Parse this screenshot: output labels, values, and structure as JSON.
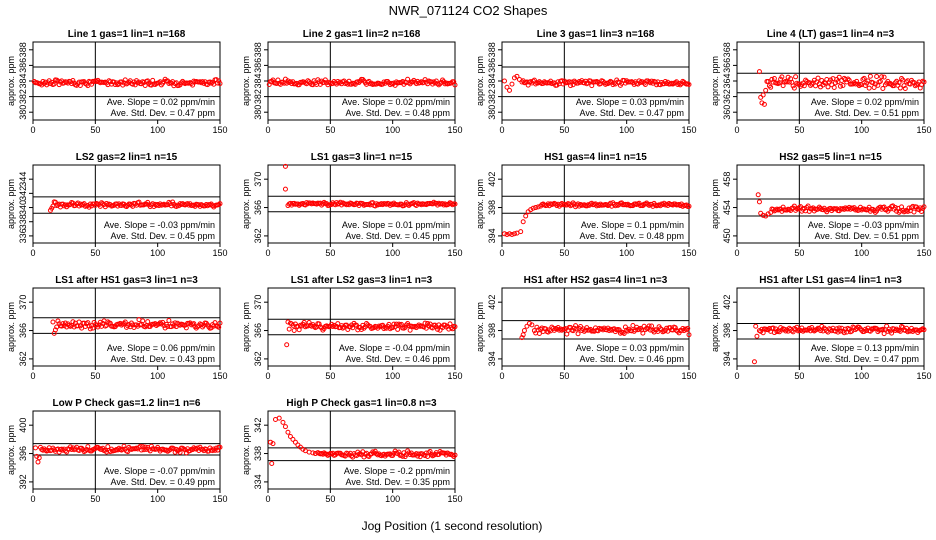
{
  "title": "NWR_071124  CO2 Shapes",
  "xlabel": "Jog Position (1 second resolution)",
  "colors": {
    "points": "#ff0000",
    "lines": "#000000",
    "background": "#ffffff"
  },
  "chart_data": [
    {
      "type": "scatter",
      "title": "Line 1 gas=1 lin=1 n=168",
      "ylabel": "approx. ppm",
      "xlim": [
        0,
        150
      ],
      "ylim": [
        379,
        389
      ],
      "xticks": [
        0,
        50,
        100,
        150
      ],
      "yticks": [
        380,
        382,
        384,
        386,
        388
      ],
      "hlines": [
        385.8,
        382.0
      ],
      "vline": 50,
      "x_start": 1,
      "x_end": 150,
      "level": 383.8,
      "noise": 0.18,
      "start_points": [],
      "slope_text": "Ave. Slope = 0.02 ppm/min",
      "std_text": "Ave. Std. Dev. = 0.47 ppm"
    },
    {
      "type": "scatter",
      "title": "Line 2 gas=1 lin=2 n=168",
      "ylabel": "approx. ppm",
      "xlim": [
        0,
        150
      ],
      "ylim": [
        379,
        389
      ],
      "xticks": [
        0,
        50,
        100,
        150
      ],
      "yticks": [
        380,
        382,
        384,
        386,
        388
      ],
      "hlines": [
        385.8,
        382.0
      ],
      "vline": 50,
      "x_start": 1,
      "x_end": 150,
      "level": 383.8,
      "noise": 0.18,
      "start_points": [],
      "slope_text": "Ave. Slope = 0.02 ppm/min",
      "std_text": "Ave. Std. Dev. = 0.48 ppm"
    },
    {
      "type": "scatter",
      "title": "Line 3 gas=1 lin=3 n=168",
      "ylabel": "approx. ppm",
      "xlim": [
        0,
        150
      ],
      "ylim": [
        379,
        389
      ],
      "xticks": [
        0,
        50,
        100,
        150
      ],
      "yticks": [
        380,
        382,
        384,
        386,
        388
      ],
      "hlines": [
        385.8,
        382.0
      ],
      "vline": 50,
      "x_start": 16,
      "x_end": 150,
      "level": 383.8,
      "noise": 0.15,
      "start_points": [
        [
          2,
          384.0
        ],
        [
          4,
          383.2
        ],
        [
          6,
          382.8
        ],
        [
          8,
          383.6
        ],
        [
          10,
          384.4
        ],
        [
          12,
          384.6
        ],
        [
          14,
          384.2
        ]
      ],
      "slope_text": "Ave. Slope = 0.03 ppm/min",
      "std_text": "Ave. Std. Dev. = 0.47 ppm"
    },
    {
      "type": "scatter",
      "title": "Line 4 (LT) gas=1 lin=4 n=3",
      "ylabel": "approx. ppm",
      "xlim": [
        0,
        150
      ],
      "ylim": [
        359,
        369
      ],
      "xticks": [
        0,
        50,
        100,
        150
      ],
      "yticks": [
        360,
        362,
        364,
        366,
        368
      ],
      "hlines": [
        365.0,
        362.5
      ],
      "vline": 50,
      "x_start": 24,
      "x_end": 150,
      "level": 363.8,
      "noise": 0.35,
      "start_points": [
        [
          18,
          365.2
        ],
        [
          19,
          361.9
        ],
        [
          20,
          361.2
        ],
        [
          21,
          362.2
        ],
        [
          22,
          361.0
        ],
        [
          23,
          362.8
        ]
      ],
      "slope_text": "Ave. Slope = 0.02 ppm/min",
      "std_text": "Ave. Std. Dev. = 0.51 ppm"
    },
    {
      "type": "scatter",
      "title": "LS2 gas=2 lin=1 n=15",
      "ylabel": "approx. ppm",
      "xlim": [
        0,
        150
      ],
      "ylim": [
        335,
        346
      ],
      "xticks": [
        0,
        50,
        100,
        150
      ],
      "yticks": [
        336,
        338,
        340,
        342,
        344
      ],
      "hlines": [
        341.5,
        339.2
      ],
      "vline": 50,
      "x_start": 18,
      "x_end": 150,
      "level": 340.4,
      "noise": 0.15,
      "start_points": [
        [
          14,
          339.6
        ],
        [
          15,
          339.9
        ],
        [
          16,
          340.2
        ],
        [
          17,
          340.8
        ]
      ],
      "slope_text": "Ave. Slope = -0.03 ppm/min",
      "std_text": "Ave. Std. Dev. = 0.45 ppm"
    },
    {
      "type": "scatter",
      "title": "LS1 gas=3 lin=1 n=15",
      "ylabel": "approx. ppm",
      "xlim": [
        0,
        150
      ],
      "ylim": [
        361,
        372
      ],
      "xticks": [
        0,
        50,
        100,
        150
      ],
      "yticks": [
        362,
        366,
        370
      ],
      "hlines": [
        367.6,
        365.4
      ],
      "vline": 50,
      "x_start": 16,
      "x_end": 150,
      "level": 366.5,
      "noise": 0.12,
      "start_points": [
        [
          14,
          371.8
        ],
        [
          14,
          368.6
        ]
      ],
      "slope_text": "Ave. Slope = 0.01 ppm/min",
      "std_text": "Ave. Std. Dev. = 0.45 ppm"
    },
    {
      "type": "scatter",
      "title": "HS1 gas=4 lin=1 n=15",
      "ylabel": "approx. ppm",
      "xlim": [
        0,
        150
      ],
      "ylim": [
        393,
        404
      ],
      "xticks": [
        0,
        50,
        100,
        150
      ],
      "yticks": [
        394,
        398,
        402
      ],
      "hlines": [
        399.6,
        397.2
      ],
      "vline": 50,
      "x_start": 32,
      "x_end": 150,
      "level": 398.4,
      "noise": 0.12,
      "start_points": [
        [
          2,
          394.3
        ],
        [
          4,
          394.2
        ],
        [
          6,
          394.3
        ],
        [
          8,
          394.2
        ],
        [
          10,
          394.3
        ],
        [
          12,
          394.4
        ],
        [
          15,
          394.6
        ],
        [
          17,
          396.0
        ],
        [
          19,
          396.8
        ],
        [
          21,
          397.4
        ],
        [
          23,
          397.7
        ],
        [
          25,
          397.9
        ],
        [
          27,
          398.0
        ],
        [
          29,
          398.1
        ],
        [
          31,
          398.2
        ]
      ],
      "slope_text": "Ave. Slope = 0.1 ppm/min",
      "std_text": "Ave. Std. Dev. = 0.48 ppm"
    },
    {
      "type": "scatter",
      "title": "HS2 gas=5 lin=1 n=15",
      "ylabel": "approx. ppm",
      "xlim": [
        0,
        150
      ],
      "ylim": [
        449,
        460
      ],
      "xticks": [
        0,
        50,
        100,
        150
      ],
      "yticks": [
        450,
        454,
        458
      ],
      "hlines": [
        455.2,
        452.8
      ],
      "vline": 50,
      "x_start": 28,
      "x_end": 150,
      "level": 453.8,
      "noise": 0.2,
      "start_points": [
        [
          17,
          455.8
        ],
        [
          18,
          454.8
        ],
        [
          19,
          453.2
        ],
        [
          21,
          452.9
        ],
        [
          23,
          452.8
        ],
        [
          25,
          453.1
        ],
        [
          27,
          453.3
        ]
      ],
      "slope_text": "Ave. Slope = -0.03 ppm/min",
      "std_text": "Ave. Std. Dev. = 0.51 ppm"
    },
    {
      "type": "scatter",
      "title": "LS1 after HS1 gas=3 lin=1 n=3",
      "ylabel": "approx. ppm",
      "xlim": [
        0,
        150
      ],
      "ylim": [
        361,
        372
      ],
      "xticks": [
        0,
        50,
        100,
        150
      ],
      "yticks": [
        362,
        366,
        370
      ],
      "hlines": [
        367.8,
        365.6
      ],
      "vline": 50,
      "x_start": 20,
      "x_end": 150,
      "level": 366.8,
      "noise": 0.3,
      "start_points": [
        [
          16,
          367.2
        ],
        [
          17,
          365.6
        ],
        [
          18,
          366.1
        ],
        [
          19,
          366.5
        ]
      ],
      "slope_text": "Ave. Slope = 0.06 ppm/min",
      "std_text": "Ave. Std. Dev. = 0.43 ppm"
    },
    {
      "type": "scatter",
      "title": "LS1 after LS2 gas=3 lin=1 n=3",
      "ylabel": "approx. ppm",
      "xlim": [
        0,
        150
      ],
      "ylim": [
        361,
        372
      ],
      "xticks": [
        0,
        50,
        100,
        150
      ],
      "yticks": [
        362,
        366,
        370
      ],
      "hlines": [
        367.6,
        365.4
      ],
      "vline": 50,
      "x_start": 18,
      "x_end": 150,
      "level": 366.6,
      "noise": 0.25,
      "start_points": [
        [
          15,
          364.0
        ],
        [
          16,
          367.2
        ],
        [
          17,
          366.2
        ]
      ],
      "slope_text": "Ave. Slope = -0.04 ppm/min",
      "std_text": "Ave. Std. Dev. = 0.46 ppm"
    },
    {
      "type": "scatter",
      "title": "HS1 after HS2 gas=4 lin=1 n=3",
      "ylabel": "approx. ppm",
      "xlim": [
        0,
        150
      ],
      "ylim": [
        393,
        404
      ],
      "xticks": [
        0,
        50,
        100,
        150
      ],
      "yticks": [
        394,
        398,
        402
      ],
      "hlines": [
        399.4,
        396.8
      ],
      "vline": 50,
      "x_start": 26,
      "x_end": 150,
      "level": 398.1,
      "noise": 0.25,
      "start_points": [
        [
          16,
          397.0
        ],
        [
          17,
          397.4
        ],
        [
          18,
          398.0
        ],
        [
          20,
          398.6
        ],
        [
          22,
          399.0
        ],
        [
          24,
          398.8
        ]
      ],
      "slope_text": "Ave. Slope = 0.03 ppm/min",
      "std_text": "Ave. Std. Dev. = 0.46 ppm"
    },
    {
      "type": "scatter",
      "title": "HS1 after LS1 gas=4 lin=1 n=3",
      "ylabel": "approx. ppm",
      "xlim": [
        0,
        150
      ],
      "ylim": [
        393,
        404
      ],
      "xticks": [
        0,
        50,
        100,
        150
      ],
      "yticks": [
        394,
        398,
        402
      ],
      "hlines": [
        399.0,
        396.8
      ],
      "vline": 50,
      "x_start": 18,
      "x_end": 150,
      "level": 398.1,
      "noise": 0.22,
      "start_points": [
        [
          14,
          393.6
        ],
        [
          15,
          398.6
        ],
        [
          16,
          397.2
        ]
      ],
      "slope_text": "Ave. Slope = 0.13 ppm/min",
      "std_text": "Ave. Std. Dev. = 0.47 ppm"
    },
    {
      "type": "scatter",
      "title": "Low P Check gas=1.2 lin=1 n=6",
      "ylabel": "approx. ppm",
      "xlim": [
        0,
        150
      ],
      "ylim": [
        391,
        402
      ],
      "xticks": [
        0,
        50,
        100,
        150
      ],
      "yticks": [
        392,
        396,
        400
      ],
      "hlines": [
        397.4,
        395.8
      ],
      "vline": 50,
      "x_start": 6,
      "x_end": 150,
      "level": 396.6,
      "noise": 0.2,
      "start_points": [
        [
          2,
          396.8
        ],
        [
          3,
          395.6
        ],
        [
          4,
          394.8
        ],
        [
          5,
          395.4
        ]
      ],
      "slope_text": "Ave. Slope = -0.07 ppm/min",
      "std_text": "Ave. Std. Dev. = 0.49 ppm"
    },
    {
      "type": "scatter",
      "title": "High P Check gas=1 lin=0.8 n=3",
      "ylabel": "approx. ppm",
      "xlim": [
        0,
        150
      ],
      "ylim": [
        333,
        344
      ],
      "xticks": [
        0,
        50,
        100,
        150
      ],
      "yticks": [
        334,
        338,
        342
      ],
      "hlines": [
        338.8,
        337.0
      ],
      "vline": 50,
      "x_start": 40,
      "x_end": 150,
      "level": 337.9,
      "noise": 0.18,
      "start_points": [
        [
          2,
          339.6
        ],
        [
          3,
          336.6
        ],
        [
          4,
          339.4
        ],
        [
          6,
          342.8
        ],
        [
          9,
          343.0
        ],
        [
          12,
          342.4
        ],
        [
          14,
          341.8
        ],
        [
          16,
          341.0
        ],
        [
          18,
          340.4
        ],
        [
          20,
          340.0
        ],
        [
          22,
          339.6
        ],
        [
          24,
          339.2
        ],
        [
          26,
          338.9
        ],
        [
          28,
          338.6
        ],
        [
          30,
          338.4
        ],
        [
          33,
          338.2
        ],
        [
          36,
          338.1
        ],
        [
          38,
          338.0
        ]
      ],
      "slope_text": "Ave. Slope = -0.2 ppm/min",
      "std_text": "Ave. Std. Dev. = 0.35 ppm"
    }
  ]
}
